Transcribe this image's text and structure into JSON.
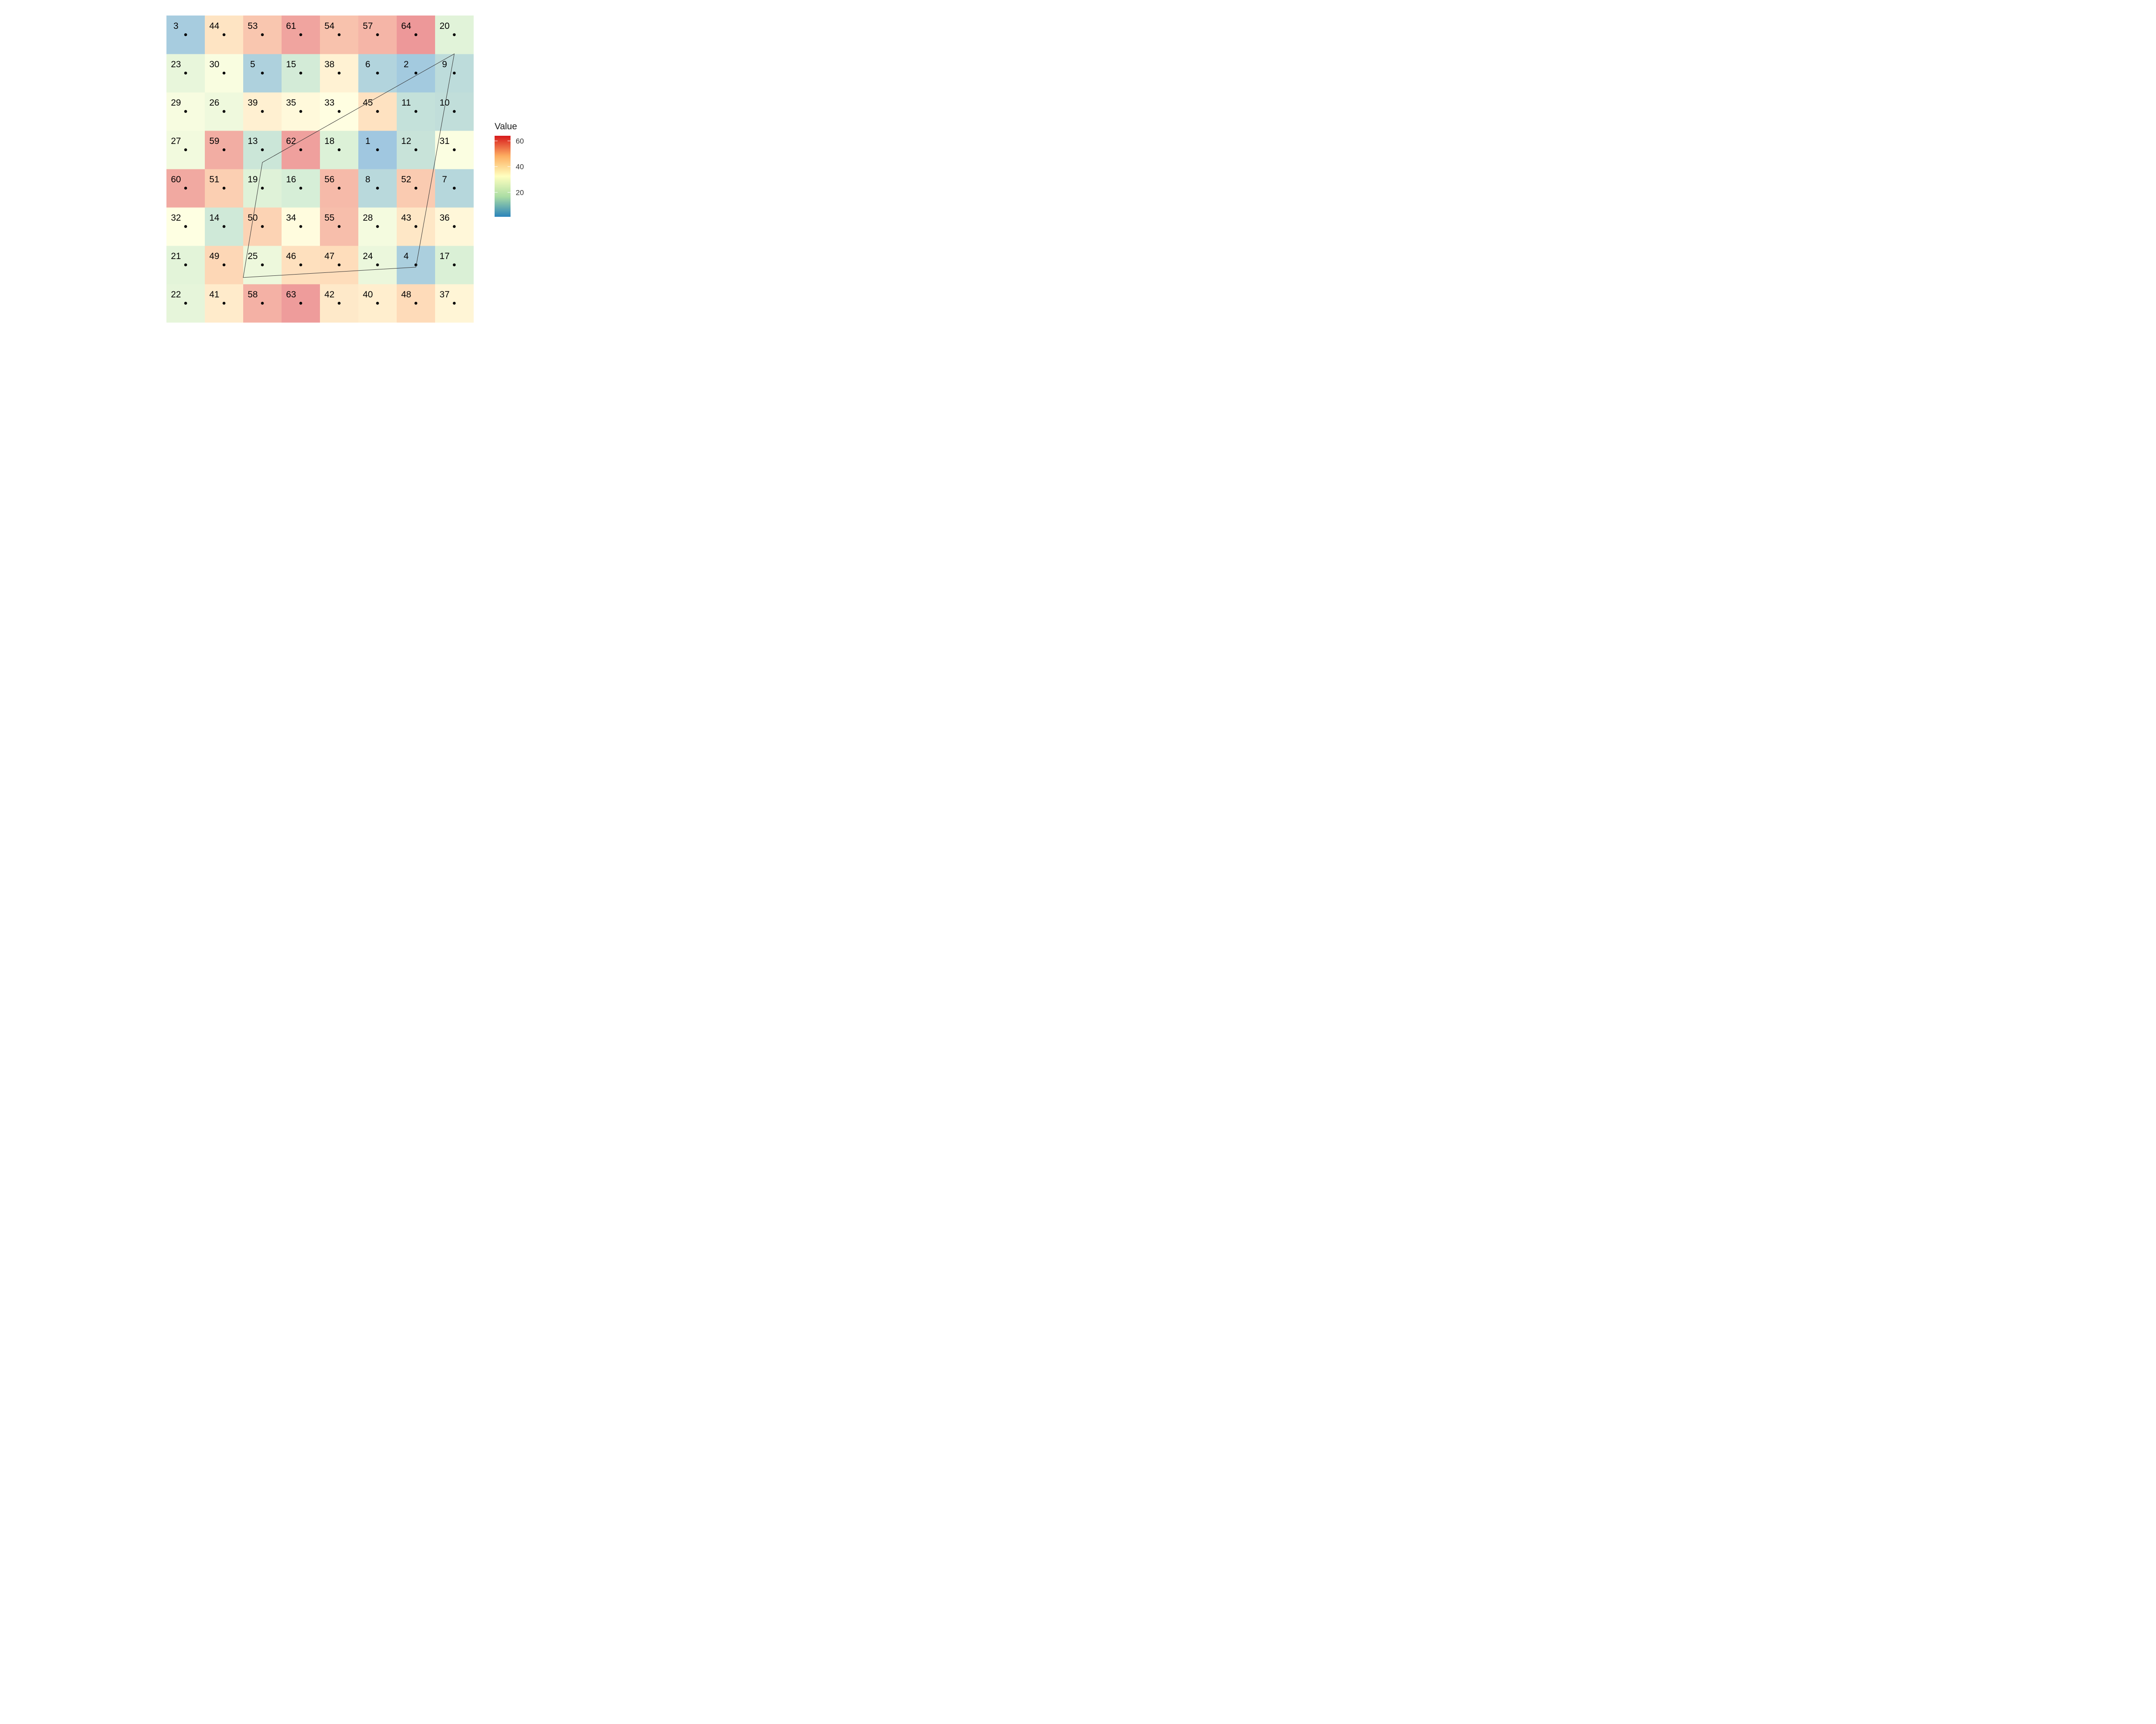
{
  "chart_data": {
    "type": "heatmap",
    "title": "",
    "xlabel": "",
    "ylabel": "",
    "grid": false,
    "axes_shown": false,
    "x": [
      1,
      2,
      3,
      4,
      5,
      6,
      7,
      8
    ],
    "y": [
      1,
      2,
      3,
      4,
      5,
      6,
      7,
      8
    ],
    "values": [
      [
        22,
        41,
        58,
        63,
        42,
        40,
        48,
        37
      ],
      [
        21,
        49,
        25,
        46,
        47,
        24,
        4,
        17
      ],
      [
        32,
        14,
        50,
        34,
        55,
        28,
        43,
        36
      ],
      [
        60,
        51,
        19,
        16,
        56,
        8,
        52,
        7
      ],
      [
        27,
        59,
        13,
        62,
        18,
        1,
        12,
        31
      ],
      [
        29,
        26,
        39,
        35,
        33,
        45,
        11,
        10
      ],
      [
        23,
        30,
        5,
        15,
        38,
        6,
        2,
        9
      ],
      [
        3,
        44,
        53,
        61,
        54,
        57,
        64,
        20
      ]
    ],
    "values_note_order": "rows listed from y=1 (bottom) to y=8 (top), columns x=1..8",
    "cell_labels_shown": true,
    "points": "cell centers",
    "polygon": [
      {
        "x": 2.5,
        "y": 1.67
      },
      {
        "x": 7.0,
        "y": 1.94
      },
      {
        "x": 8.0,
        "y": 7.5
      },
      {
        "x": 3.0,
        "y": 4.67
      }
    ],
    "legend": {
      "title": "Value",
      "ticks": [
        20,
        40,
        60
      ],
      "range": [
        1,
        64
      ],
      "position": "right",
      "colors": [
        "#2b83ba",
        "#abdda4",
        "#ffffbf",
        "#fdae61",
        "#d7191c"
      ]
    },
    "fill_alpha": 0.45
  }
}
